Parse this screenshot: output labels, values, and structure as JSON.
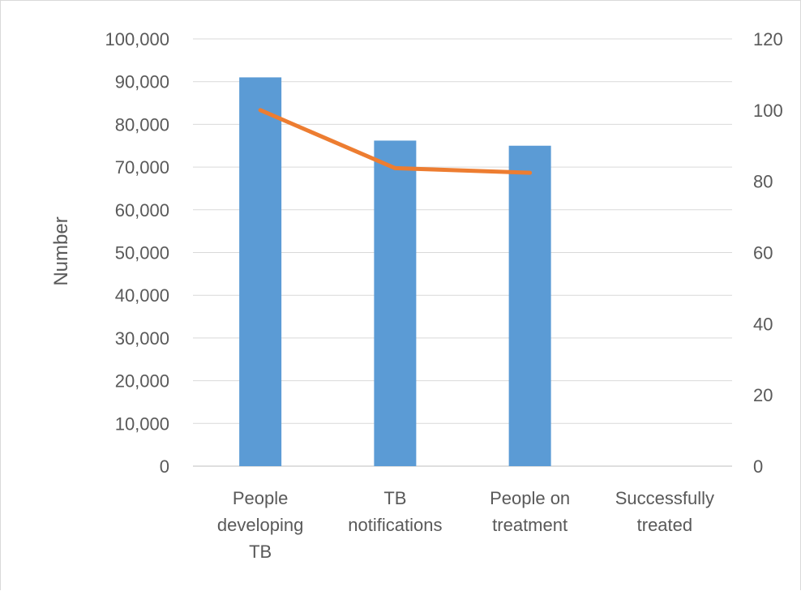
{
  "chart_data": {
    "type": "bar",
    "categories": [
      [
        "People",
        "developing",
        "TB"
      ],
      [
        "TB",
        "notifications"
      ],
      [
        "People on",
        "treatment"
      ],
      [
        "Successfully",
        "treated"
      ]
    ],
    "series": [
      {
        "type": "bar",
        "axis": "left",
        "values": [
          91000,
          76200,
          75000,
          null
        ],
        "color": "#5b9bd5"
      },
      {
        "type": "line",
        "axis": "right",
        "values": [
          100,
          83.7,
          82.4,
          null
        ],
        "color": "#ed7d31"
      }
    ],
    "ylabel": "Number",
    "ylim": [
      0,
      100000
    ],
    "yticks": [
      "0",
      "10,000",
      "20,000",
      "30,000",
      "40,000",
      "50,000",
      "60,000",
      "70,000",
      "80,000",
      "90,000",
      "100,000"
    ],
    "y2lim": [
      0,
      120
    ],
    "y2ticks": [
      "0",
      "20",
      "40",
      "60",
      "80",
      "100",
      "120"
    ],
    "grid": true,
    "legend": "none"
  }
}
